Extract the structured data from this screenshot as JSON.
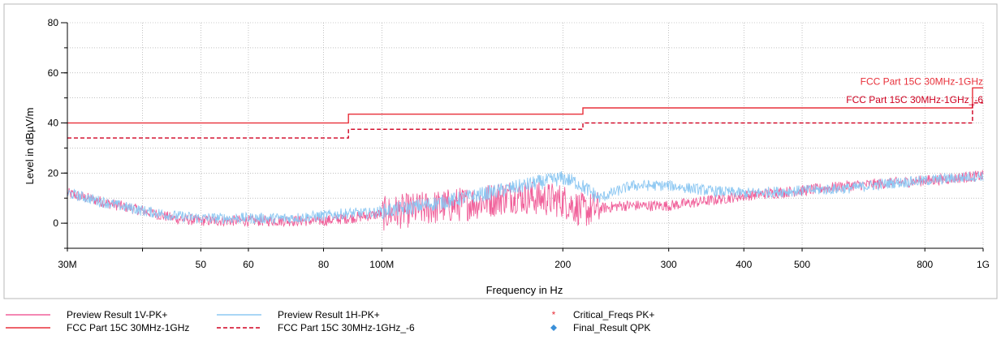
{
  "chart_data": {
    "type": "line",
    "xlabel": "Frequency in Hz",
    "ylabel": "Level in dBµV/m",
    "xscale": "log",
    "xlim": [
      30000000,
      1000000000
    ],
    "ylim": [
      -10,
      80
    ],
    "grid": true,
    "x_ticks": [
      {
        "value": 30000000,
        "label": "30M"
      },
      {
        "value": 40000000,
        "label": ""
      },
      {
        "value": 50000000,
        "label": "50"
      },
      {
        "value": 60000000,
        "label": "60"
      },
      {
        "value": 80000000,
        "label": "80"
      },
      {
        "value": 100000000,
        "label": "100M"
      },
      {
        "value": 200000000,
        "label": "200"
      },
      {
        "value": 300000000,
        "label": "300"
      },
      {
        "value": 400000000,
        "label": "400"
      },
      {
        "value": 500000000,
        "label": "500"
      },
      {
        "value": 800000000,
        "label": "800"
      },
      {
        "value": 1000000000,
        "label": "1G"
      }
    ],
    "y_ticks": [
      {
        "value": 0,
        "label": "0"
      },
      {
        "value": 20,
        "label": "20"
      },
      {
        "value": 40,
        "label": "40"
      },
      {
        "value": 60,
        "label": "60"
      },
      {
        "value": 80,
        "label": "80"
      }
    ],
    "series": [
      {
        "name": "Preview Result 1V-PK+",
        "color": "#f0609a",
        "points": [
          [
            30000000,
            12
          ],
          [
            35000000,
            8
          ],
          [
            40000000,
            5
          ],
          [
            45000000,
            2
          ],
          [
            50000000,
            1
          ],
          [
            60000000,
            1
          ],
          [
            70000000,
            1
          ],
          [
            80000000,
            1
          ],
          [
            88000000,
            2
          ],
          [
            95000000,
            3
          ],
          [
            110000000,
            5
          ],
          [
            130000000,
            7
          ],
          [
            150000000,
            9
          ],
          [
            165000000,
            11
          ],
          [
            180000000,
            10
          ],
          [
            200000000,
            9
          ],
          [
            216000000,
            5
          ],
          [
            250000000,
            7
          ],
          [
            300000000,
            7
          ],
          [
            350000000,
            9
          ],
          [
            400000000,
            11
          ],
          [
            500000000,
            13
          ],
          [
            600000000,
            15
          ],
          [
            700000000,
            16
          ],
          [
            800000000,
            17
          ],
          [
            900000000,
            18
          ],
          [
            1000000000,
            19
          ]
        ]
      },
      {
        "name": "Preview Result 1H-PK+",
        "color": "#8ec8f2",
        "points": [
          [
            30000000,
            12
          ],
          [
            35000000,
            8
          ],
          [
            40000000,
            5
          ],
          [
            45000000,
            3
          ],
          [
            50000000,
            2
          ],
          [
            60000000,
            2
          ],
          [
            70000000,
            2
          ],
          [
            80000000,
            3
          ],
          [
            88000000,
            4
          ],
          [
            95000000,
            4
          ],
          [
            110000000,
            6
          ],
          [
            130000000,
            9
          ],
          [
            150000000,
            12
          ],
          [
            165000000,
            14
          ],
          [
            180000000,
            16
          ],
          [
            200000000,
            18
          ],
          [
            212000000,
            16
          ],
          [
            230000000,
            10
          ],
          [
            260000000,
            15
          ],
          [
            300000000,
            15
          ],
          [
            350000000,
            13
          ],
          [
            400000000,
            12
          ],
          [
            500000000,
            13
          ],
          [
            600000000,
            14
          ],
          [
            700000000,
            16
          ],
          [
            800000000,
            17
          ],
          [
            900000000,
            18
          ],
          [
            1000000000,
            19
          ]
        ]
      },
      {
        "name": "FCC Part 15C 30MHz-1GHz",
        "color": "#e8303a",
        "style": "solid",
        "points": [
          [
            30000000,
            40
          ],
          [
            88000000,
            40
          ],
          [
            88000000,
            43.5
          ],
          [
            216000000,
            43.5
          ],
          [
            216000000,
            46
          ],
          [
            960000000,
            46
          ],
          [
            960000000,
            54
          ],
          [
            1000000000,
            54
          ]
        ],
        "label": "FCC Part 15C 30MHz-1GHz"
      },
      {
        "name": "FCC Part 15C 30MHz-1GHz_-6",
        "color": "#d00020",
        "style": "dashed",
        "points": [
          [
            30000000,
            34
          ],
          [
            88000000,
            34
          ],
          [
            88000000,
            37.5
          ],
          [
            216000000,
            37.5
          ],
          [
            216000000,
            40
          ],
          [
            960000000,
            40
          ],
          [
            960000000,
            48
          ],
          [
            1000000000,
            48
          ]
        ],
        "label": "FCC Part 15C 30MHz-1GHz_-6"
      }
    ],
    "legend": [
      {
        "label": "Preview Result 1V-PK+",
        "marker": "line",
        "color": "#f0609a"
      },
      {
        "label": "Preview Result 1H-PK+",
        "marker": "line",
        "color": "#8ec8f2"
      },
      {
        "label": "Critical_Freqs PK+",
        "marker": "star",
        "color": "#e8303a"
      },
      {
        "label": "FCC Part 15C 30MHz-1GHz",
        "marker": "line",
        "color": "#e8303a"
      },
      {
        "label": "FCC Part 15C 30MHz-1GHz_-6",
        "marker": "dashed",
        "color": "#d00020"
      },
      {
        "label": "Final_Result QPK",
        "marker": "diamond",
        "color": "#3a8fd8"
      }
    ],
    "legend_position": "bottom"
  }
}
